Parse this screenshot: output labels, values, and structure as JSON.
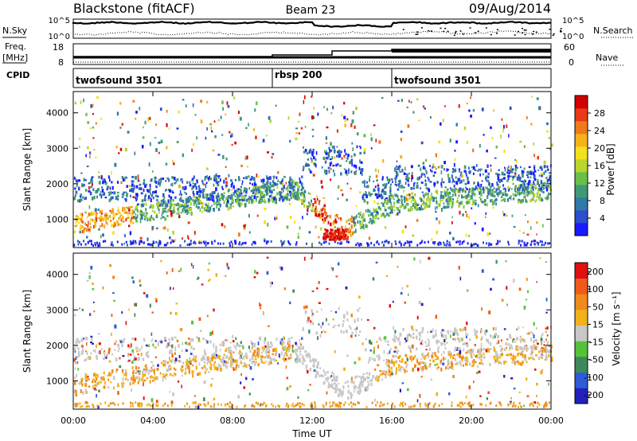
{
  "header": {
    "station": "Blackstone (fitACF)",
    "beam": "Beam 23",
    "date": "09/Aug/2014"
  },
  "noise_panel": {
    "left_label": "N.Sky",
    "right_label": "N.Search",
    "left_ticks": [
      "10^5",
      "10^0"
    ],
    "right_ticks": [
      "10^5",
      "10^0"
    ]
  },
  "freq_panel": {
    "left_label_line1": "Freq.",
    "left_label_line2": "[MHz]",
    "right_label": "Nave",
    "left_ticks": [
      "18",
      "8"
    ],
    "right_ticks": [
      "60",
      "0"
    ]
  },
  "cpid_panel": {
    "label": "CPID",
    "modes": [
      {
        "name": "twofsound 3501",
        "start_h": 0,
        "end_h": 10
      },
      {
        "name": "rbsp 200",
        "start_h": 10,
        "end_h": 16
      },
      {
        "name": "twofsound 3501",
        "start_h": 16,
        "end_h": 24
      }
    ]
  },
  "chart_data": [
    {
      "type": "heatmap",
      "xlabel": "",
      "ylabel": "Slant Range [km]",
      "xlim": [
        0,
        24
      ],
      "ylim": [
        200,
        4600
      ],
      "yticks": [
        "1000",
        "2000",
        "3000",
        "4000"
      ],
      "colorbar": {
        "label": "Power [dB]",
        "ticks": [
          "4",
          "8",
          "12",
          "16",
          "20",
          "24",
          "28"
        ],
        "colors": [
          "#1a1aff",
          "#2b4fcf",
          "#2f7aa8",
          "#3f9a76",
          "#6abf4b",
          "#b8d62e",
          "#f2e11b",
          "#f5b21a",
          "#f07a1a",
          "#e83a15",
          "#d40000"
        ]
      }
    },
    {
      "type": "heatmap",
      "xlabel": "Time UT",
      "ylabel": "Slant Range [km]",
      "xlim": [
        0,
        24
      ],
      "ylim": [
        200,
        4600
      ],
      "xticks": [
        "00:00",
        "04:00",
        "08:00",
        "12:00",
        "16:00",
        "20:00",
        "00:00"
      ],
      "yticks": [
        "1000",
        "2000",
        "3000",
        "4000"
      ],
      "colorbar": {
        "label": "Velocity [m s⁻¹]",
        "ticks": [
          "200",
          "100",
          "50",
          "15",
          "-15",
          "-50",
          "-100",
          "-200"
        ],
        "colors": [
          "#2222bb",
          "#2f5bd8",
          "#3c8a5a",
          "#56c23a",
          "#c8c8c8",
          "#f2b21a",
          "#f08a1a",
          "#f05a1a",
          "#e01010"
        ]
      }
    }
  ]
}
